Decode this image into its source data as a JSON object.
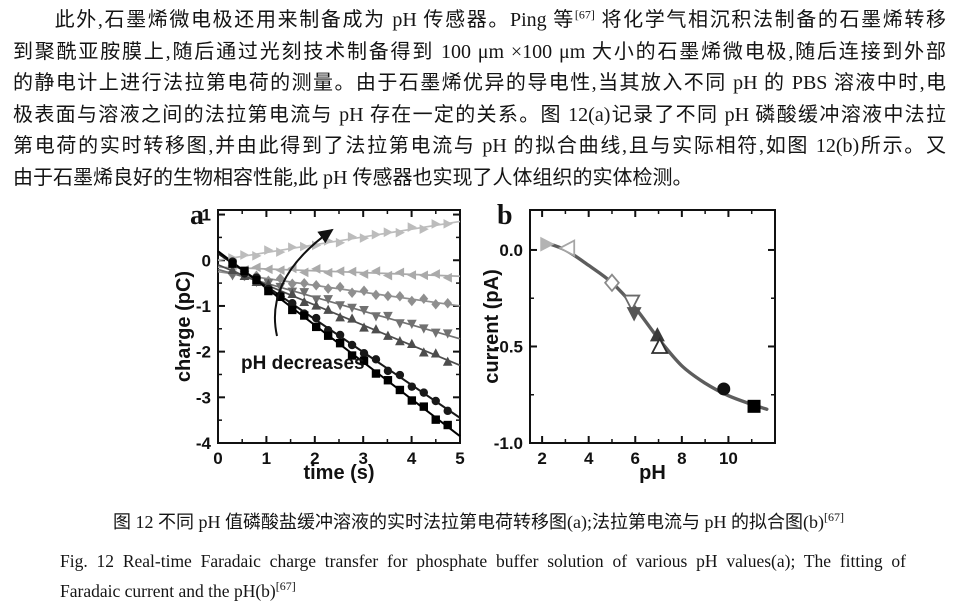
{
  "page": {
    "background": "#ffffff",
    "text_color": "#141414"
  },
  "paragraph": {
    "line1_pre": "此外,石墨烯微电极还用来制备成为 pH 传感器。Ping 等",
    "line1_sup": "[67]",
    "line1_post": " 将化学气相沉积法制备的石墨烯转移",
    "line2": "到聚酰亚胺膜上,随后通过光刻技术制备得到 100 μm ×100 μm 大小的石墨烯微电极,随后连接到外部",
    "line3": "的静电计上进行法拉第电荷的测量。由于石墨烯优异的导电性,当其放入不同 pH 的 PBS 溶液中时,电",
    "line4": "极表面与溶液之间的法拉第电流与 pH 存在一定的关系。图 12(a)记录了不同 pH 磷酸缓冲溶液中法拉",
    "line5": "第电荷的实时转移图,并由此得到了法拉第电流与 pH 的拟合曲线,且与实际相符,如图 12(b)所示。又",
    "line6": "由于石墨烯良好的生物相容性能,此 pH 传感器也实现了人体组织的实体检测。"
  },
  "caption": {
    "zh_pre": "图 12  不同 pH 值磷酸盐缓冲溶液的实时法拉第电荷转移图(a);法拉第电流与 pH 的拟合图(b)",
    "zh_sup": "[67]",
    "en_line1": "Fig. 12  Real-time Faradaic charge transfer for phosphate buffer solution of various pH values(a); The fitting of",
    "en_line2_pre": "Faradaic current and the pH(b)",
    "en_line2_sup": "[67]"
  },
  "chart_data": [
    {
      "type": "line",
      "panel_label": "a",
      "xlabel": "time (s)",
      "ylabel": "charge (pC)",
      "xlim": [
        0,
        5
      ],
      "ylim": [
        -4,
        1.1
      ],
      "xticks": [
        {
          "v": 0,
          "label": "0"
        },
        {
          "v": 1,
          "label": "1"
        },
        {
          "v": 2,
          "label": "2"
        },
        {
          "v": 3,
          "label": "3"
        },
        {
          "v": 4,
          "label": "4"
        },
        {
          "v": 5,
          "label": "5"
        }
      ],
      "yticks": [
        {
          "v": 1,
          "label": "1"
        },
        {
          "v": 0,
          "label": "0"
        },
        {
          "v": -1,
          "label": "-1"
        },
        {
          "v": -2,
          "label": "-2"
        },
        {
          "v": -3,
          "label": "-3"
        },
        {
          "v": -4,
          "label": "-4"
        }
      ],
      "grid": false,
      "annotation": {
        "text": "pH decreases"
      },
      "series": [
        {
          "marker": "triangle-right",
          "color": "#bcbcbc",
          "start": 0.0,
          "end": 0.85
        },
        {
          "marker": "triangle-left",
          "color": "#aaaaaa",
          "start": -0.15,
          "end": -0.35
        },
        {
          "marker": "diamond",
          "color": "#8f8f8f",
          "start": -0.25,
          "end": -1.0
        },
        {
          "marker": "triangle-down",
          "color": "#717171",
          "start": -0.2,
          "end": -1.72
        },
        {
          "marker": "triangle-up",
          "color": "#4d4d4d",
          "start": -0.1,
          "end": -2.3
        },
        {
          "marker": "circle",
          "color": "#181818",
          "start": 0.15,
          "end": -3.45
        },
        {
          "marker": "square",
          "color": "#000000",
          "start": 0.2,
          "end": -3.85
        }
      ]
    },
    {
      "type": "scatter",
      "panel_label": "b",
      "xlabel": "pH",
      "ylabel": "current (pA)",
      "xlim": [
        1.48,
        12.0
      ],
      "ylim": [
        -1.0,
        0.207
      ],
      "xticks": [
        {
          "v": 2,
          "label": "2"
        },
        {
          "v": 4,
          "label": "4"
        },
        {
          "v": 6,
          "label": "6"
        },
        {
          "v": 8,
          "label": "8"
        },
        {
          "v": 10,
          "label": "10"
        }
      ],
      "yticks": [
        {
          "v": 0,
          "label": "0.0"
        },
        {
          "v": -0.5,
          "label": "-0.5"
        },
        {
          "v": -1,
          "label": "-1.0"
        }
      ],
      "grid": false,
      "points": [
        {
          "x": 2.2,
          "y": 0.03,
          "marker": "triangle-right",
          "color": "#b3b3b3",
          "filled": true
        },
        {
          "x": 3.1,
          "y": 0.01,
          "marker": "triangle-left",
          "color": "#a6a6a6",
          "filled": false
        },
        {
          "x": 5.0,
          "y": -0.17,
          "marker": "diamond",
          "color": "#8a8a8a",
          "filled": false
        },
        {
          "x": 5.85,
          "y": -0.27,
          "marker": "triangle-down",
          "color": "#6a6a6a",
          "filled": false
        },
        {
          "x": 5.95,
          "y": -0.33,
          "marker": "triangle-down",
          "color": "#565656",
          "filled": true
        },
        {
          "x": 6.95,
          "y": -0.44,
          "marker": "triangle-up",
          "color": "#3a3a3a",
          "filled": true
        },
        {
          "x": 7.05,
          "y": -0.5,
          "marker": "triangle-up",
          "color": "#2e2e2e",
          "filled": false
        },
        {
          "x": 9.8,
          "y": -0.72,
          "marker": "circle",
          "color": "#111111",
          "filled": true
        },
        {
          "x": 11.1,
          "y": -0.81,
          "marker": "square",
          "color": "#000000",
          "filled": true
        }
      ],
      "fit_curve": [
        [
          2.1,
          0.04
        ],
        [
          3.0,
          0.0
        ],
        [
          4.0,
          -0.08
        ],
        [
          5.0,
          -0.17
        ],
        [
          6.0,
          -0.3
        ],
        [
          7.0,
          -0.46
        ],
        [
          8.0,
          -0.6
        ],
        [
          9.0,
          -0.69
        ],
        [
          10.0,
          -0.755
        ],
        [
          11.0,
          -0.8
        ],
        [
          11.65,
          -0.825
        ]
      ],
      "fit_color": "#5d5d5d"
    }
  ]
}
